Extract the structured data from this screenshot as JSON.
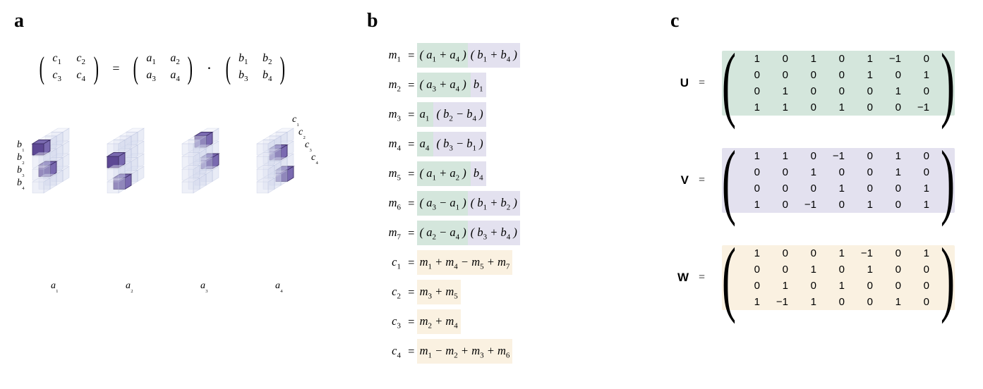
{
  "font_family": "Georgia, serif",
  "text_color": "#000000",
  "background_color": "#ffffff",
  "panel_labels": {
    "a": "a",
    "b": "b",
    "c": "c",
    "fontsize": 28,
    "fontweight": 700
  },
  "panel_a": {
    "matmul_equation": {
      "C": [
        [
          "c",
          "1"
        ],
        [
          "c",
          "2"
        ],
        [
          "c",
          "3"
        ],
        [
          "c",
          "4"
        ]
      ],
      "A": [
        [
          "a",
          "1"
        ],
        [
          "a",
          "2"
        ],
        [
          "a",
          "3"
        ],
        [
          "a",
          "4"
        ]
      ],
      "B": [
        [
          "b",
          "1"
        ],
        [
          "b",
          "2"
        ],
        [
          "b",
          "3"
        ],
        [
          "b",
          "4"
        ]
      ],
      "rows": 2,
      "cols": 2,
      "equals": "=",
      "dot": "·"
    },
    "tensor": {
      "grid_size": 4,
      "num_slices": 4,
      "slice_labels": [
        "a₁",
        "a₂",
        "a₃",
        "a₄"
      ],
      "row_labels_left": [
        "b₁",
        "b₂",
        "b₃",
        "b₄"
      ],
      "depth_labels_right": [
        "c₁",
        "c₂",
        "c₃",
        "c₄"
      ],
      "cube_face_color": "#d9def0",
      "cube_edge_color": "#b8c0de",
      "highlight_face_color": "#5d4894",
      "highlight_top_color": "#7a6ab0",
      "highlight_edge_color": "#3f3068",
      "highlighted_cells": [
        {
          "slice": 0,
          "row": 0,
          "depth": 0
        },
        {
          "slice": 0,
          "row": 2,
          "depth": 1
        },
        {
          "slice": 1,
          "row": 1,
          "depth": 0
        },
        {
          "slice": 1,
          "row": 3,
          "depth": 1
        },
        {
          "slice": 2,
          "row": 0,
          "depth": 2
        },
        {
          "slice": 2,
          "row": 2,
          "depth": 3
        },
        {
          "slice": 3,
          "row": 1,
          "depth": 2
        },
        {
          "slice": 3,
          "row": 3,
          "depth": 3
        }
      ]
    }
  },
  "panel_b": {
    "highlight_colors": {
      "a": "#d4e6dc",
      "b": "#e3e1ef",
      "c": "#faf1e1"
    },
    "fontsize": 16.5,
    "equations": [
      {
        "lhs": "m₁",
        "rhs_parts": [
          {
            "txt": "( a₁ + a₄ )",
            "hl": "a"
          },
          {
            "txt": "( b₁ + b₄ )",
            "hl": "b"
          }
        ]
      },
      {
        "lhs": "m₂",
        "rhs_parts": [
          {
            "txt": "( a₃ + a₄ ) ",
            "hl": "a"
          },
          {
            "txt": "b₁",
            "hl": "b"
          }
        ]
      },
      {
        "lhs": "m₃",
        "rhs_parts": [
          {
            "txt": "a₁ ",
            "hl": "a"
          },
          {
            "txt": "( b₂ − b₄ )",
            "hl": "b"
          }
        ]
      },
      {
        "lhs": "m₄",
        "rhs_parts": [
          {
            "txt": "a₄ ",
            "hl": "a"
          },
          {
            "txt": "( b₃ − b₁ )",
            "hl": "b"
          }
        ]
      },
      {
        "lhs": "m₅",
        "rhs_parts": [
          {
            "txt": "( a₁ + a₂ ) ",
            "hl": "a"
          },
          {
            "txt": "b₄",
            "hl": "b"
          }
        ]
      },
      {
        "lhs": "m₆",
        "rhs_parts": [
          {
            "txt": "( a₃ − a₁ )",
            "hl": "a"
          },
          {
            "txt": "( b₁ + b₂ )",
            "hl": "b"
          }
        ]
      },
      {
        "lhs": "m₇",
        "rhs_parts": [
          {
            "txt": "( a₂ − a₄ )",
            "hl": "a"
          },
          {
            "txt": "( b₃ + b₄ )",
            "hl": "b"
          }
        ]
      },
      {
        "lhs": "c₁",
        "rhs_parts": [
          {
            "txt": "m₁ + m₄ − m₅ + m₇",
            "hl": "c"
          }
        ]
      },
      {
        "lhs": "c₂",
        "rhs_parts": [
          {
            "txt": "m₃ + m₅",
            "hl": "c"
          }
        ]
      },
      {
        "lhs": "c₃",
        "rhs_parts": [
          {
            "txt": "m₂ + m₄",
            "hl": "c"
          }
        ]
      },
      {
        "lhs": "c₄",
        "rhs_parts": [
          {
            "txt": "m₁ − m₂ + m₃ + m₆",
            "hl": "c"
          }
        ]
      }
    ]
  },
  "panel_c": {
    "matrices": [
      {
        "name": "U",
        "bg": "#d4e6dc",
        "rows": 4,
        "cols": 7,
        "values": [
          [
            1,
            0,
            1,
            0,
            1,
            -1,
            0
          ],
          [
            0,
            0,
            0,
            0,
            1,
            0,
            1
          ],
          [
            0,
            1,
            0,
            0,
            0,
            1,
            0
          ],
          [
            1,
            1,
            0,
            1,
            0,
            0,
            -1
          ]
        ]
      },
      {
        "name": "V",
        "bg": "#e3e1ef",
        "rows": 4,
        "cols": 7,
        "values": [
          [
            1,
            1,
            0,
            -1,
            0,
            1,
            0
          ],
          [
            0,
            0,
            1,
            0,
            0,
            1,
            0
          ],
          [
            0,
            0,
            0,
            1,
            0,
            0,
            1
          ],
          [
            1,
            0,
            -1,
            0,
            1,
            0,
            1
          ]
        ]
      },
      {
        "name": "W",
        "bg": "#faf1e1",
        "rows": 4,
        "cols": 7,
        "values": [
          [
            1,
            0,
            0,
            1,
            -1,
            0,
            1
          ],
          [
            0,
            0,
            1,
            0,
            1,
            0,
            0
          ],
          [
            0,
            1,
            0,
            1,
            0,
            0,
            0
          ],
          [
            1,
            -1,
            1,
            0,
            0,
            1,
            0
          ]
        ]
      }
    ],
    "label_fontsize": 17,
    "value_fontsize": 15
  }
}
